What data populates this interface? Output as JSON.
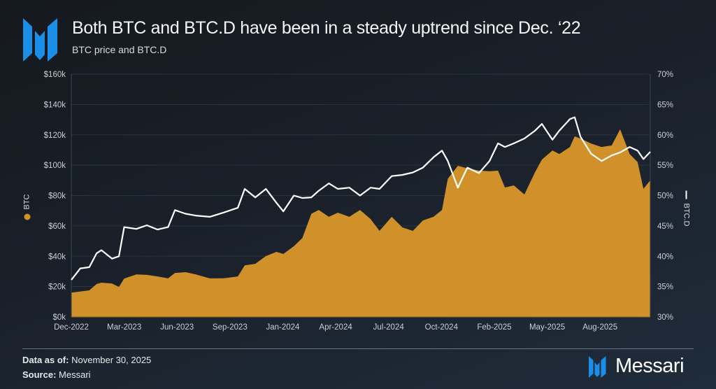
{
  "header": {
    "title": "Both BTC and BTC.D have been in a steady uptrend since Dec. ‘22",
    "subtitle": "BTC price and BTC.D",
    "logo_icon": "messari-logo-icon"
  },
  "footer": {
    "data_as_of_label": "Data as of:",
    "data_as_of_value": "November 30, 2025",
    "source_label": "Source:",
    "source_value": "Messari",
    "brand": "Messari"
  },
  "colors": {
    "btc": "#d0912a",
    "btcd": "#ffffff",
    "accent": "#1b8fe8",
    "grid": "#2c3440"
  },
  "chart_data": {
    "type": "area+line",
    "title": "Both BTC and BTC.D have been in a steady uptrend since Dec. ‘22",
    "subtitle": "BTC price and BTC.D",
    "grid": true,
    "x_range": [
      "2022-12-01",
      "2025-11-30"
    ],
    "x_ticks": [
      "Dec-2022",
      "Mar-2023",
      "Jun-2023",
      "Sep-2023",
      "Jan-2024",
      "Apr-2024",
      "Jul-2024",
      "Oct-2024",
      "Feb-2025",
      "May-2025",
      "Aug-2025"
    ],
    "y_left": {
      "label": "BTC",
      "range": [
        0,
        160
      ],
      "ticks": [
        "$0k",
        "$20k",
        "$40k",
        "$60k",
        "$80k",
        "$100k",
        "$120k",
        "$140k",
        "$160k"
      ]
    },
    "y_right": {
      "label": "BTC.D",
      "range": [
        30,
        70
      ],
      "ticks": [
        "30%",
        "35%",
        "40%",
        "45%",
        "50%",
        "55%",
        "60%",
        "65%",
        "70%"
      ]
    },
    "dates": [
      "2022-12-01",
      "2022-12-18",
      "2023-01-04",
      "2023-01-18",
      "2023-01-27",
      "2023-02-16",
      "2023-03-01",
      "2023-03-11",
      "2023-04-03",
      "2023-04-23",
      "2023-05-13",
      "2023-06-02",
      "2023-06-15",
      "2023-07-05",
      "2023-07-24",
      "2023-08-20",
      "2023-09-15",
      "2023-10-12",
      "2023-10-25",
      "2023-11-14",
      "2023-12-04",
      "2023-12-24",
      "2024-01-06",
      "2024-01-26",
      "2024-02-11",
      "2024-02-28",
      "2024-03-13",
      "2024-04-01",
      "2024-04-18",
      "2024-05-10",
      "2024-05-30",
      "2024-06-19",
      "2024-07-06",
      "2024-07-29",
      "2024-08-18",
      "2024-09-07",
      "2024-09-26",
      "2024-10-16",
      "2024-11-01",
      "2024-11-12",
      "2024-12-01",
      "2024-12-19",
      "2025-01-10",
      "2025-01-30",
      "2025-02-15",
      "2025-02-28",
      "2025-03-17",
      "2025-04-06",
      "2025-04-26",
      "2025-05-09",
      "2025-05-29",
      "2025-06-11",
      "2025-07-01",
      "2025-07-10",
      "2025-07-21",
      "2025-08-10",
      "2025-08-30",
      "2025-09-18",
      "2025-10-04",
      "2025-10-22",
      "2025-11-06",
      "2025-11-17",
      "2025-11-30"
    ],
    "series": [
      {
        "name": "BTC",
        "kind": "area",
        "unit": "$k",
        "values": [
          16,
          16.8,
          17.5,
          21.7,
          22.6,
          22,
          19.8,
          25.3,
          28,
          27.7,
          26.7,
          25.4,
          29,
          29.5,
          28.1,
          25.4,
          25.5,
          26.7,
          34,
          35,
          40.1,
          42.9,
          41.5,
          46.6,
          52,
          68,
          70.5,
          66,
          68.7,
          66,
          70.5,
          64.5,
          56.7,
          66,
          59,
          56.7,
          63.6,
          66,
          70.5,
          91,
          99.6,
          98,
          96.4,
          96,
          96.4,
          85.3,
          86.7,
          80.7,
          95.4,
          103.7,
          109.7,
          107.4,
          112,
          119,
          117.6,
          114.3,
          112,
          113,
          123.6,
          107.4,
          102,
          84.4,
          90
        ]
      },
      {
        "name": "BTC.D",
        "kind": "line",
        "unit": "%",
        "values": [
          36.1,
          38,
          38.2,
          40.5,
          41,
          39.6,
          40,
          44.8,
          44.5,
          45.1,
          44.4,
          44.8,
          47.6,
          47,
          46.7,
          46.5,
          47.2,
          48,
          51.1,
          49.7,
          51.1,
          48.8,
          47.4,
          50,
          49.6,
          49.7,
          50.8,
          52,
          51.1,
          51.3,
          50,
          51.3,
          51.1,
          53.2,
          53.4,
          53.8,
          54.6,
          56.3,
          57.4,
          55.7,
          51.3,
          54.6,
          53.7,
          55.7,
          58.6,
          58,
          58.6,
          59.4,
          60.7,
          61.8,
          59.2,
          60.7,
          62.6,
          62.9,
          59.7,
          56.9,
          55.7,
          56.6,
          57.1,
          58,
          57.4,
          56,
          57.2
        ]
      }
    ]
  }
}
